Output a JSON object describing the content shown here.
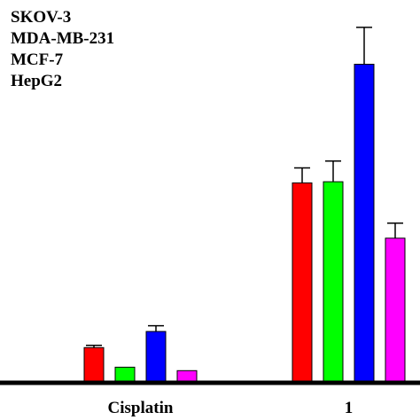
{
  "chart_data": {
    "type": "bar",
    "categories": [
      "Cisplatin",
      "1"
    ],
    "series": [
      {
        "name": "SKOV-3",
        "color": "#ff0000",
        "values": [
          1.45,
          8.6
        ],
        "errors": [
          0.1,
          0.65
        ]
      },
      {
        "name": "MDA-MB-231",
        "color": "#00ff00",
        "values": [
          0.6,
          8.65
        ],
        "errors": [
          0.0,
          0.9
        ]
      },
      {
        "name": "MCF-7",
        "color": "#0000ff",
        "values": [
          2.15,
          13.75
        ],
        "errors": [
          0.25,
          1.6
        ]
      },
      {
        "name": "HepG2",
        "color": "#ff00ff",
        "values": [
          0.45,
          6.2
        ],
        "errors": [
          0.0,
          0.65
        ]
      }
    ],
    "title": "",
    "xlabel": "",
    "ylabel": "",
    "ylim": [
      0,
      16
    ],
    "grid": false,
    "legend": "top-left"
  }
}
